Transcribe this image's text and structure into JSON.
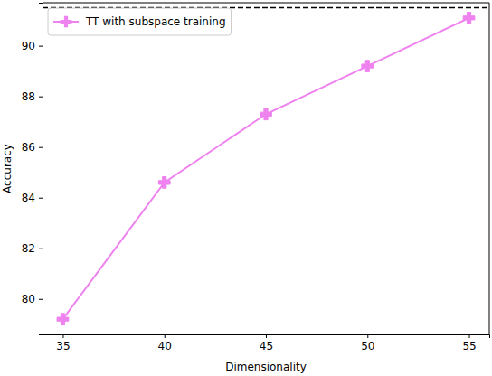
{
  "chart_data": {
    "type": "line",
    "x_label": "Dimensionality",
    "y_label": "Accuracy",
    "x": [
      35,
      40,
      45,
      50,
      55
    ],
    "series": [
      {
        "name": "TT with subspace training",
        "color": "#ee82ee",
        "marker": "plus",
        "line_style": "solid",
        "values": [
          79.2,
          84.6,
          87.3,
          89.2,
          91.1
        ]
      }
    ],
    "reference_line": {
      "value": 91.5,
      "color": "black",
      "line_style": "dashed"
    },
    "xlim": [
      34,
      56
    ],
    "xticks": [
      35,
      40,
      45,
      50,
      55
    ],
    "ylim": [
      78.6,
      91.7
    ],
    "yticks": [
      80,
      82,
      84,
      86,
      88,
      90
    ],
    "grid": false,
    "legend": "upper left"
  }
}
